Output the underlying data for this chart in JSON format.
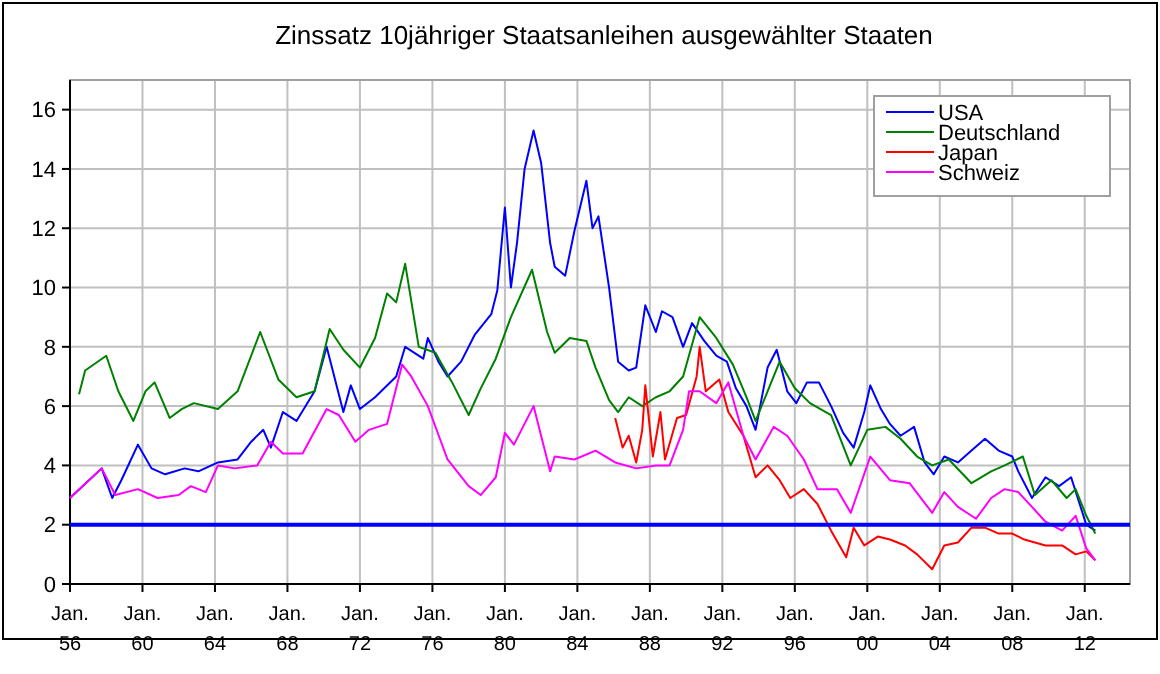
{
  "chart_data": {
    "type": "line",
    "title": "Zinssatz 10jähriger Staatsanleihen ausgewählter Staaten",
    "xlim": [
      "1956-01",
      "2014-07"
    ],
    "ylim": [
      0,
      17
    ],
    "xticks": [
      {
        "value": "1956-01",
        "label": "Jan.\n56"
      },
      {
        "value": "1960-01",
        "label": "Jan.\n60"
      },
      {
        "value": "1964-01",
        "label": "Jan.\n64"
      },
      {
        "value": "1968-01",
        "label": "Jan.\n68"
      },
      {
        "value": "1972-01",
        "label": "Jan.\n72"
      },
      {
        "value": "1976-01",
        "label": "Jan.\n76"
      },
      {
        "value": "1980-01",
        "label": "Jan.\n80"
      },
      {
        "value": "1984-01",
        "label": "Jan.\n84"
      },
      {
        "value": "1988-01",
        "label": "Jan.\n88"
      },
      {
        "value": "1992-01",
        "label": "Jan.\n92"
      },
      {
        "value": "1996-01",
        "label": "Jan.\n96"
      },
      {
        "value": "2000-01",
        "label": "Jan.\n00"
      },
      {
        "value": "2004-01",
        "label": "Jan.\n04"
      },
      {
        "value": "2008-01",
        "label": "Jan.\n08"
      },
      {
        "value": "2012-01",
        "label": "Jan.\n12"
      }
    ],
    "yticks": [
      0,
      2,
      4,
      6,
      8,
      10,
      12,
      14,
      16
    ],
    "grid": true,
    "legend": "top right",
    "marker": "none",
    "line_style": "solid",
    "ref_lines": [
      {
        "axis": "y",
        "value": 2,
        "label": null,
        "color": "#0000ff"
      }
    ],
    "series": [
      {
        "name": "USA",
        "color": "#0000ff",
        "x": [
          "1956-01",
          "1957-10",
          "1958-05",
          "1958-11",
          "1959-10",
          "1960-07",
          "1961-04",
          "1962-05",
          "1963-02",
          "1964-03",
          "1965-04",
          "1966-01",
          "1966-09",
          "1967-02",
          "1967-10",
          "1968-07",
          "1969-07",
          "1970-03",
          "1971-02",
          "1971-07",
          "1972-01",
          "1972-11",
          "1974-01",
          "1974-07",
          "1975-07",
          "1975-10",
          "1976-05",
          "1976-11",
          "1977-08",
          "1978-05",
          "1979-04",
          "1979-08",
          "1980-01",
          "1980-05",
          "1980-09",
          "1981-02",
          "1981-08",
          "1982-01",
          "1982-07",
          "1982-10",
          "1983-05",
          "1983-11",
          "1984-07",
          "1984-11",
          "1985-03",
          "1985-10",
          "1986-04",
          "1986-11",
          "1987-04",
          "1987-10",
          "1988-05",
          "1988-09",
          "1989-04",
          "1989-11",
          "1990-05",
          "1991-01",
          "1991-09",
          "1992-04",
          "1992-10",
          "1993-05",
          "1993-11",
          "1994-07",
          "1995-01",
          "1995-08",
          "1996-02",
          "1996-09",
          "1997-05",
          "1998-01",
          "1998-09",
          "1999-04",
          "1999-11",
          "2000-03",
          "2000-10",
          "2001-04",
          "2001-11",
          "2002-08",
          "2003-03",
          "2003-09",
          "2004-04",
          "2005-01",
          "2005-10",
          "2006-07",
          "2007-04",
          "2008-01",
          "2008-05",
          "2009-02",
          "2009-11",
          "2010-08",
          "2011-04",
          "2012-02",
          "2012-08"
        ],
        "values": [
          2.9,
          3.9,
          2.9,
          3.5,
          4.7,
          3.9,
          3.7,
          3.9,
          3.8,
          4.1,
          4.2,
          4.8,
          5.2,
          4.6,
          5.8,
          5.5,
          6.5,
          8.0,
          5.8,
          6.7,
          5.9,
          6.3,
          7.0,
          8.0,
          7.6,
          8.3,
          7.5,
          7.0,
          7.5,
          8.4,
          9.1,
          9.9,
          12.7,
          10.0,
          11.5,
          14.0,
          15.3,
          14.2,
          11.5,
          10.7,
          10.4,
          11.9,
          13.6,
          12.0,
          12.4,
          10.0,
          7.5,
          7.2,
          7.3,
          9.4,
          8.5,
          9.2,
          9.0,
          8.0,
          8.8,
          8.2,
          7.7,
          7.5,
          6.6,
          6.0,
          5.2,
          7.3,
          7.9,
          6.5,
          6.1,
          6.8,
          6.8,
          6.0,
          5.1,
          4.6,
          5.8,
          6.7,
          5.9,
          5.4,
          5.0,
          5.3,
          4.1,
          3.7,
          4.3,
          4.1,
          4.5,
          4.9,
          4.5,
          4.3,
          3.8,
          2.9,
          3.6,
          3.3,
          3.6,
          2.0,
          1.8
        ]
      },
      {
        "name": "Deutschland",
        "color": "#008000",
        "x": [
          "1956-07",
          "1956-11",
          "1958-01",
          "1958-09",
          "1959-07",
          "1960-03",
          "1960-09",
          "1961-07",
          "1962-03",
          "1962-11",
          "1964-03",
          "1965-04",
          "1966-07",
          "1967-07",
          "1968-07",
          "1969-07",
          "1970-05",
          "1971-02",
          "1972-01",
          "1972-11",
          "1973-07",
          "1974-01",
          "1974-07",
          "1975-04",
          "1976-03",
          "1977-02",
          "1978-01",
          "1978-09",
          "1979-07",
          "1980-05",
          "1981-07",
          "1982-05",
          "1982-10",
          "1983-08",
          "1984-07",
          "1985-01",
          "1985-10",
          "1986-04",
          "1986-11",
          "1987-08",
          "1988-05",
          "1989-02",
          "1989-11",
          "1990-10",
          "1991-09",
          "1992-08",
          "1993-05",
          "1993-11",
          "1994-07",
          "1995-03",
          "1996-01",
          "1996-11",
          "1998-01",
          "1999-02",
          "2000-01",
          "2001-01",
          "2001-11",
          "2002-10",
          "2003-08",
          "2004-07",
          "2005-10",
          "2006-11",
          "2007-08",
          "2008-08",
          "2009-04",
          "2010-03",
          "2011-01",
          "2011-07",
          "2012-02",
          "2012-08"
        ],
        "values": [
          6.4,
          7.2,
          7.7,
          6.5,
          5.5,
          6.5,
          6.8,
          5.6,
          5.9,
          6.1,
          5.9,
          6.5,
          8.5,
          6.9,
          6.3,
          6.5,
          8.6,
          7.9,
          7.3,
          8.3,
          9.8,
          9.5,
          10.8,
          8.0,
          7.8,
          6.8,
          5.7,
          6.6,
          7.6,
          9.0,
          10.6,
          8.5,
          7.8,
          8.3,
          8.2,
          7.3,
          6.2,
          5.8,
          6.3,
          6.0,
          6.3,
          6.5,
          7.0,
          9.0,
          8.3,
          7.4,
          6.3,
          5.5,
          6.5,
          7.5,
          6.6,
          6.1,
          5.7,
          4.0,
          5.2,
          5.3,
          4.9,
          4.3,
          4.0,
          4.2,
          3.4,
          3.8,
          4.0,
          4.3,
          3.0,
          3.5,
          2.9,
          3.2,
          2.3,
          1.7
        ]
      },
      {
        "name": "Japan",
        "color": "#ff0000",
        "x": [
          "1986-02",
          "1986-07",
          "1986-11",
          "1987-04",
          "1987-08",
          "1987-10",
          "1988-03",
          "1988-08",
          "1988-11",
          "1989-07",
          "1990-01",
          "1990-08",
          "1990-10",
          "1991-02",
          "1991-11",
          "1992-05",
          "1993-03",
          "1993-11",
          "1994-07",
          "1995-03",
          "1995-10",
          "1996-07",
          "1997-04",
          "1998-01",
          "1998-11",
          "1999-04",
          "1999-11",
          "2000-08",
          "2001-04",
          "2002-02",
          "2002-10",
          "2003-08",
          "2004-04",
          "2005-01",
          "2005-10",
          "2006-07",
          "2007-04",
          "2008-01",
          "2008-09",
          "2009-11",
          "2010-10",
          "2011-07",
          "2012-02",
          "2012-08"
        ],
        "values": [
          5.6,
          4.6,
          5.0,
          4.1,
          5.2,
          6.7,
          4.3,
          5.8,
          4.2,
          5.6,
          5.7,
          7.0,
          8.0,
          6.5,
          6.9,
          5.8,
          5.0,
          3.6,
          4.0,
          3.5,
          2.9,
          3.2,
          2.7,
          1.8,
          0.9,
          1.9,
          1.3,
          1.6,
          1.5,
          1.3,
          1.0,
          0.5,
          1.3,
          1.4,
          1.9,
          1.9,
          1.7,
          1.7,
          1.5,
          1.3,
          1.3,
          1.0,
          1.1,
          0.8
        ]
      },
      {
        "name": "Schweiz",
        "color": "#ff00ff",
        "x": [
          "1956-01",
          "1957-10",
          "1958-07",
          "1959-10",
          "1960-11",
          "1962-01",
          "1962-09",
          "1963-07",
          "1964-03",
          "1965-02",
          "1966-05",
          "1967-02",
          "1967-10",
          "1968-11",
          "1970-03",
          "1970-11",
          "1971-10",
          "1972-07",
          "1973-07",
          "1974-05",
          "1974-11",
          "1975-10",
          "1976-11",
          "1978-01",
          "1978-09",
          "1979-07",
          "1980-01",
          "1980-07",
          "1981-08",
          "1982-07",
          "1982-10",
          "1983-11",
          "1985-01",
          "1986-02",
          "1987-04",
          "1988-05",
          "1989-02",
          "1989-11",
          "1990-03",
          "1990-10",
          "1991-09",
          "1992-05",
          "1993-03",
          "1993-11",
          "1994-11",
          "1995-08",
          "1996-07",
          "1997-04",
          "1998-05",
          "1999-02",
          "2000-03",
          "2001-04",
          "2002-05",
          "2003-08",
          "2004-04",
          "2005-01",
          "2006-01",
          "2006-11",
          "2007-08",
          "2008-05",
          "2009-02",
          "2009-11",
          "2010-10",
          "2011-07",
          "2012-02",
          "2012-08"
        ],
        "values": [
          2.9,
          3.9,
          3.0,
          3.2,
          2.9,
          3.0,
          3.3,
          3.1,
          4.0,
          3.9,
          4.0,
          4.8,
          4.4,
          4.4,
          5.9,
          5.7,
          4.8,
          5.2,
          5.4,
          7.4,
          7.0,
          6.0,
          4.2,
          3.3,
          3.0,
          3.6,
          5.1,
          4.7,
          6.0,
          3.8,
          4.3,
          4.2,
          4.5,
          4.1,
          3.9,
          4.0,
          4.0,
          5.2,
          6.5,
          6.5,
          6.1,
          6.8,
          5.0,
          4.2,
          5.3,
          5.0,
          4.2,
          3.2,
          3.2,
          2.4,
          4.3,
          3.5,
          3.4,
          2.4,
          3.1,
          2.6,
          2.2,
          2.9,
          3.2,
          3.1,
          2.6,
          2.1,
          1.8,
          2.3,
          1.2,
          0.8
        ]
      }
    ]
  }
}
